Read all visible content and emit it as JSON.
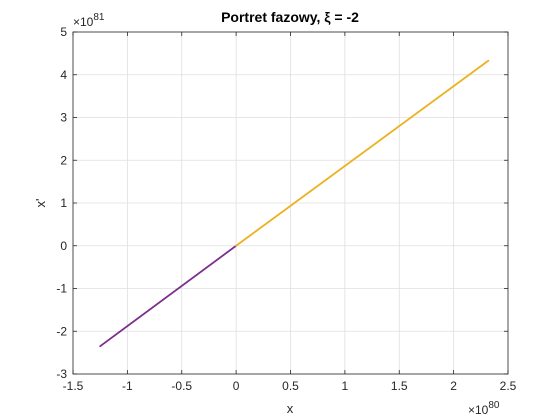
{
  "chart_data": {
    "type": "line",
    "title": "Portret fazowy, ξ = -2",
    "xlabel": "x",
    "ylabel": "x'",
    "x_exponent": {
      "base": "×10",
      "power": "80"
    },
    "y_exponent": {
      "base": "×10",
      "power": "81"
    },
    "xlim": [
      -1.5,
      2.5
    ],
    "ylim": [
      -3,
      5
    ],
    "x_ticks": [
      -1.5,
      -1,
      -0.5,
      0,
      0.5,
      1,
      1.5,
      2,
      2.5
    ],
    "x_tick_labels": [
      "-1.5",
      "-1",
      "-0.5",
      "0",
      "0.5",
      "1",
      "1.5",
      "2",
      "2.5"
    ],
    "y_ticks": [
      -3,
      -2,
      -1,
      0,
      1,
      2,
      3,
      4,
      5
    ],
    "y_tick_labels": [
      "-3",
      "-2",
      "-1",
      "0",
      "1",
      "2",
      "3",
      "4",
      "5"
    ],
    "grid": true,
    "series": [
      {
        "color": "#7E2F8E",
        "x": [
          -1.25,
          0
        ],
        "y": [
          -2.35,
          0
        ]
      },
      {
        "color": "#EDB120",
        "x": [
          0,
          2.32
        ],
        "y": [
          0,
          4.33
        ]
      }
    ]
  }
}
